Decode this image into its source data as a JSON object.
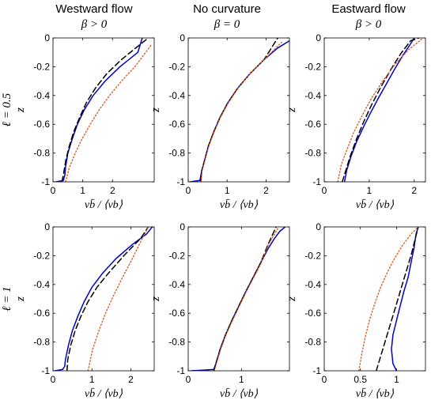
{
  "figure": {
    "columns": [
      {
        "title": "Westward flow",
        "subtitle": "β > 0"
      },
      {
        "title": "No curvature",
        "subtitle": "β = 0"
      },
      {
        "title": "Eastward flow",
        "subtitle": "β > 0"
      }
    ],
    "rows": [
      {
        "label": "ℓ = 0.5"
      },
      {
        "label": "ℓ = 1"
      }
    ]
  },
  "colors": {
    "solid": "#0000cc",
    "dashed": "#000000",
    "dotted": "#d95319"
  },
  "chart_data": [
    {
      "type": "line",
      "ylabel": "z",
      "xlabel": "vb̄ / ⟨vb⟩",
      "xlim": [
        0,
        3.4
      ],
      "ylim": [
        -1,
        0
      ],
      "xticks": [
        0,
        1,
        2
      ],
      "yticks": [
        0,
        -0.2,
        -0.4,
        -0.6,
        -0.8,
        -1
      ],
      "series": [
        {
          "style": "solid",
          "x": [
            0.1,
            0.35,
            0.4,
            0.42,
            0.5,
            0.65,
            0.82,
            1.05,
            1.35,
            1.75,
            2.25,
            2.85,
            3.0
          ],
          "y": [
            -1,
            -0.99,
            -0.95,
            -0.9,
            -0.8,
            -0.7,
            -0.6,
            -0.5,
            -0.4,
            -0.3,
            -0.2,
            -0.1,
            0
          ]
        },
        {
          "style": "dashed",
          "x": [
            0.3,
            0.35,
            0.43,
            0.55,
            0.7,
            0.9,
            1.12,
            1.42,
            1.8,
            2.3,
            2.9,
            3.2
          ],
          "y": [
            -1,
            -0.95,
            -0.85,
            -0.75,
            -0.65,
            -0.55,
            -0.45,
            -0.35,
            -0.25,
            -0.15,
            -0.05,
            0
          ]
        },
        {
          "style": "dotted",
          "x": [
            0.42,
            0.55,
            0.75,
            0.98,
            1.25,
            1.55,
            1.9,
            2.3,
            2.75,
            3.3
          ],
          "y": [
            -1,
            -0.9,
            -0.8,
            -0.7,
            -0.6,
            -0.5,
            -0.4,
            -0.3,
            -0.2,
            -0.05
          ]
        }
      ]
    },
    {
      "type": "line",
      "ylabel": "z",
      "xlabel": "vb̄ / ⟨vb⟩",
      "xlim": [
        0,
        2.6
      ],
      "ylim": [
        -1,
        0
      ],
      "xticks": [
        0,
        1,
        2
      ],
      "yticks": [
        0,
        -0.2,
        -0.4,
        -0.6,
        -0.8,
        -1
      ],
      "series": [
        {
          "style": "solid",
          "x": [
            0.05,
            0.3,
            0.35,
            0.42,
            0.52,
            0.66,
            0.82,
            1.02,
            1.27,
            1.58,
            1.95,
            2.3,
            2.6
          ],
          "y": [
            -1,
            -0.99,
            -0.92,
            -0.85,
            -0.75,
            -0.65,
            -0.55,
            -0.45,
            -0.35,
            -0.25,
            -0.15,
            -0.07,
            -0.02
          ]
        },
        {
          "style": "dashed",
          "x": [
            0.32,
            0.35,
            0.42,
            0.52,
            0.66,
            0.82,
            1.02,
            1.27,
            1.58,
            1.95,
            2.3
          ],
          "y": [
            -1,
            -0.92,
            -0.85,
            -0.75,
            -0.65,
            -0.55,
            -0.45,
            -0.35,
            -0.25,
            -0.15,
            0
          ]
        },
        {
          "style": "dotted",
          "x": [
            0.33,
            0.36,
            0.43,
            0.53,
            0.67,
            0.83,
            1.03,
            1.28,
            1.58,
            1.95,
            2.4
          ],
          "y": [
            -1,
            -0.92,
            -0.85,
            -0.75,
            -0.65,
            -0.55,
            -0.45,
            -0.35,
            -0.25,
            -0.15,
            -0.03
          ]
        }
      ]
    },
    {
      "type": "line",
      "ylabel": "z",
      "xlabel": "vb̄ / ⟨vb⟩",
      "xlim": [
        0,
        2.25
      ],
      "ylim": [
        -1,
        0
      ],
      "xticks": [
        0,
        1,
        2
      ],
      "yticks": [
        0,
        -0.2,
        -0.4,
        -0.6,
        -0.8,
        -1
      ],
      "series": [
        {
          "style": "solid",
          "x": [
            0.45,
            0.5,
            0.6,
            0.72,
            0.87,
            1.03,
            1.2,
            1.38,
            1.56,
            1.75,
            1.9,
            2.0
          ],
          "y": [
            -1,
            -0.92,
            -0.82,
            -0.72,
            -0.62,
            -0.52,
            -0.42,
            -0.32,
            -0.22,
            -0.12,
            -0.05,
            0
          ]
        },
        {
          "style": "dashed",
          "x": [
            0.4,
            0.48,
            0.58,
            0.72,
            0.88,
            1.06,
            1.26,
            1.48,
            1.7,
            1.92,
            2.1
          ],
          "y": [
            -1,
            -0.92,
            -0.82,
            -0.7,
            -0.58,
            -0.46,
            -0.34,
            -0.22,
            -0.11,
            -0.02,
            0
          ]
        },
        {
          "style": "dotted",
          "x": [
            0.3,
            0.38,
            0.5,
            0.65,
            0.84,
            1.05,
            1.3,
            1.58,
            1.88,
            2.2
          ],
          "y": [
            -1,
            -0.88,
            -0.78,
            -0.66,
            -0.54,
            -0.42,
            -0.3,
            -0.18,
            -0.08,
            0
          ]
        }
      ]
    },
    {
      "type": "line",
      "ylabel": "z",
      "xlabel": "vb̄ / ⟨vb⟩",
      "xlim": [
        0,
        2.6
      ],
      "ylim": [
        -1,
        0
      ],
      "xticks": [
        0,
        1,
        2
      ],
      "yticks": [
        0,
        -0.2,
        -0.4,
        -0.6,
        -0.8,
        -1
      ],
      "series": [
        {
          "style": "solid",
          "x": [
            0.05,
            0.25,
            0.3,
            0.32,
            0.4,
            0.5,
            0.64,
            0.8,
            1.0,
            1.28,
            1.62,
            2.05,
            2.4,
            2.55
          ],
          "y": [
            -1,
            -0.99,
            -0.97,
            -0.92,
            -0.82,
            -0.72,
            -0.62,
            -0.52,
            -0.42,
            -0.32,
            -0.22,
            -0.12,
            -0.05,
            0
          ]
        },
        {
          "style": "dashed",
          "x": [
            0.36,
            0.38,
            0.46,
            0.57,
            0.72,
            0.9,
            1.13,
            1.43,
            1.82,
            2.25,
            2.45
          ],
          "y": [
            -1,
            -0.92,
            -0.82,
            -0.72,
            -0.62,
            -0.52,
            -0.42,
            -0.32,
            -0.2,
            -0.08,
            0
          ]
        },
        {
          "style": "dotted",
          "x": [
            0.9,
            1.02,
            1.18,
            1.35,
            1.55,
            1.77,
            2.0,
            2.22,
            2.45
          ],
          "y": [
            -1,
            -0.85,
            -0.72,
            -0.6,
            -0.48,
            -0.36,
            -0.24,
            -0.12,
            0
          ]
        }
      ]
    },
    {
      "type": "line",
      "ylabel": "z",
      "xlabel": "vb̄ / ⟨vb⟩",
      "xlim": [
        0,
        1.9
      ],
      "ylim": [
        -1,
        0
      ],
      "xticks": [
        0,
        1
      ],
      "yticks": [
        0,
        -0.2,
        -0.4,
        -0.6,
        -0.8,
        -1
      ],
      "series": [
        {
          "style": "solid",
          "x": [
            0.05,
            0.3,
            0.48,
            0.52,
            0.6,
            0.7,
            0.82,
            0.95,
            1.08,
            1.22,
            1.36,
            1.5,
            1.62,
            1.72,
            1.82
          ],
          "y": [
            -1,
            -0.995,
            -0.99,
            -0.95,
            -0.85,
            -0.75,
            -0.65,
            -0.55,
            -0.45,
            -0.35,
            -0.25,
            -0.15,
            -0.08,
            -0.03,
            0
          ]
        },
        {
          "style": "dashed",
          "x": [
            0.48,
            0.52,
            0.6,
            0.7,
            0.82,
            0.95,
            1.08,
            1.22,
            1.36,
            1.5,
            1.65
          ],
          "y": [
            -1,
            -0.95,
            -0.85,
            -0.75,
            -0.65,
            -0.55,
            -0.45,
            -0.35,
            -0.25,
            -0.12,
            0
          ]
        },
        {
          "style": "dotted",
          "x": [
            0.49,
            0.53,
            0.61,
            0.71,
            0.83,
            0.96,
            1.09,
            1.23,
            1.37,
            1.51,
            1.7
          ],
          "y": [
            -1,
            -0.95,
            -0.85,
            -0.75,
            -0.65,
            -0.55,
            -0.45,
            -0.35,
            -0.25,
            -0.12,
            0
          ]
        }
      ]
    },
    {
      "type": "line",
      "ylabel": "z",
      "xlabel": "vb̄ / ⟨vb⟩",
      "xlim": [
        0,
        1.4
      ],
      "ylim": [
        -1,
        0
      ],
      "xticks": [
        0,
        0.5,
        1
      ],
      "yticks": [
        0,
        -0.2,
        -0.4,
        -0.6,
        -0.8,
        -1
      ],
      "series": [
        {
          "style": "solid",
          "x": [
            1.0,
            0.95,
            0.93,
            0.95,
            1.0,
            1.05,
            1.1,
            1.16,
            1.2,
            1.24,
            1.27,
            1.3
          ],
          "y": [
            -1,
            -0.95,
            -0.85,
            -0.75,
            -0.65,
            -0.55,
            -0.45,
            -0.35,
            -0.25,
            -0.15,
            -0.05,
            0
          ]
        },
        {
          "style": "dashed",
          "x": [
            0.72,
            0.78,
            0.84,
            0.9,
            0.96,
            1.02,
            1.08,
            1.14,
            1.2,
            1.25,
            1.28,
            1.3
          ],
          "y": [
            -1,
            -0.9,
            -0.8,
            -0.7,
            -0.6,
            -0.5,
            -0.4,
            -0.3,
            -0.2,
            -0.1,
            -0.04,
            0
          ]
        },
        {
          "style": "dotted",
          "x": [
            0.48,
            0.52,
            0.57,
            0.63,
            0.7,
            0.78,
            0.87,
            0.97,
            1.08,
            1.2,
            1.3
          ],
          "y": [
            -1,
            -0.88,
            -0.76,
            -0.64,
            -0.53,
            -0.42,
            -0.32,
            -0.22,
            -0.13,
            -0.05,
            0
          ]
        }
      ]
    }
  ]
}
